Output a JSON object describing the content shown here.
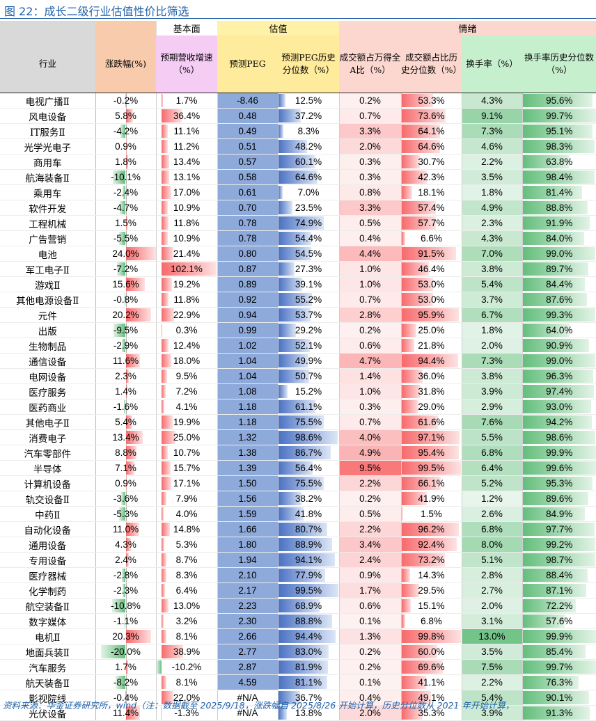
{
  "title": "图 22：成长二级行业估值性价比筛选",
  "groups": {
    "fundamentals": "基本面",
    "valuation": "估值",
    "sentiment": "情绪"
  },
  "headers": {
    "industry": "行业",
    "change": "涨跌幅(%)",
    "growth": "预期营收增速（%）",
    "peg": "预测PEG",
    "peg_pct": "预测PEG历史分位数（%）",
    "amt_share": "成交额占万得全A比（%）",
    "amt_pct": "成交额占比历史分位数（%）",
    "turnover": "换手率（%）",
    "turnover_pct": "换手率历史分位数（%）"
  },
  "colors": {
    "title_blue": "#1f5fa8",
    "neg_green": "#63be7b",
    "pos_red": "#f8696b",
    "val_blue": "#4a72c4",
    "peg_fill": "#8eaadb",
    "amt_red": "#f8696b",
    "turnover_green": "#63be7b"
  },
  "section_break_before": [
    7,
    17,
    35
  ],
  "rows": [
    [
      "电视广播Ⅱ",
      "-0.2%",
      "1.7%",
      "-8.46",
      "12.5%",
      "0.2%",
      "53.3%",
      "4.3%",
      "95.6%"
    ],
    [
      "风电设备",
      "5.8%",
      "36.4%",
      "0.48",
      "37.2%",
      "0.7%",
      "73.6%",
      "9.1%",
      "99.7%"
    ],
    [
      "IT服务Ⅱ",
      "-4.2%",
      "11.1%",
      "0.49",
      "8.3%",
      "3.3%",
      "64.1%",
      "7.3%",
      "95.1%"
    ],
    [
      "光学光电子",
      "0.9%",
      "11.2%",
      "0.51",
      "48.2%",
      "2.0%",
      "64.6%",
      "4.6%",
      "98.3%"
    ],
    [
      "商用车",
      "1.8%",
      "13.4%",
      "0.57",
      "60.1%",
      "0.3%",
      "30.7%",
      "2.2%",
      "63.8%"
    ],
    [
      "航海装备Ⅱ",
      "-10.1%",
      "13.1%",
      "0.58",
      "64.6%",
      "0.3%",
      "42.3%",
      "3.5%",
      "98.4%"
    ],
    [
      "乘用车",
      "-2.4%",
      "17.0%",
      "0.61",
      "7.0%",
      "0.8%",
      "18.1%",
      "1.8%",
      "81.4%"
    ],
    [
      "软件开发",
      "-4.7%",
      "10.9%",
      "0.70",
      "23.5%",
      "3.3%",
      "57.4%",
      "4.9%",
      "88.8%"
    ],
    [
      "工程机械",
      "1.5%",
      "11.8%",
      "0.78",
      "74.9%",
      "0.5%",
      "57.7%",
      "2.3%",
      "91.9%"
    ],
    [
      "广告营销",
      "-5.5%",
      "10.9%",
      "0.78",
      "54.4%",
      "0.4%",
      "6.6%",
      "4.3%",
      "84.0%"
    ],
    [
      "电池",
      "24.0%",
      "21.4%",
      "0.80",
      "54.5%",
      "4.4%",
      "91.5%",
      "7.0%",
      "99.0%"
    ],
    [
      "军工电子Ⅱ",
      "-7.2%",
      "102.1%",
      "0.87",
      "27.3%",
      "1.0%",
      "46.4%",
      "3.8%",
      "89.7%"
    ],
    [
      "游戏Ⅱ",
      "15.6%",
      "19.2%",
      "0.89",
      "39.1%",
      "1.0%",
      "53.0%",
      "5.4%",
      "84.4%"
    ],
    [
      "其他电源设备Ⅱ",
      "-0.8%",
      "11.8%",
      "0.92",
      "55.2%",
      "0.7%",
      "53.0%",
      "3.7%",
      "87.6%"
    ],
    [
      "元件",
      "20.2%",
      "22.9%",
      "0.94",
      "53.7%",
      "2.8%",
      "95.9%",
      "6.7%",
      "99.3%"
    ],
    [
      "出版",
      "-9.5%",
      "0.3%",
      "0.99",
      "29.2%",
      "0.2%",
      "25.0%",
      "1.8%",
      "64.0%"
    ],
    [
      "生物制品",
      "-2.9%",
      "12.4%",
      "1.02",
      "52.1%",
      "0.6%",
      "21.8%",
      "2.0%",
      "90.9%"
    ],
    [
      "通信设备",
      "11.6%",
      "18.0%",
      "1.04",
      "49.9%",
      "4.7%",
      "94.4%",
      "7.3%",
      "99.0%"
    ],
    [
      "电网设备",
      "2.3%",
      "9.5%",
      "1.04",
      "50.7%",
      "1.4%",
      "36.0%",
      "3.8%",
      "96.3%"
    ],
    [
      "医疗服务",
      "1.4%",
      "7.2%",
      "1.08",
      "15.2%",
      "1.0%",
      "31.8%",
      "3.9%",
      "97.4%"
    ],
    [
      "医药商业",
      "-1.6%",
      "4.1%",
      "1.18",
      "61.1%",
      "0.3%",
      "29.0%",
      "2.9%",
      "93.0%"
    ],
    [
      "其他电子Ⅱ",
      "5.4%",
      "19.9%",
      "1.18",
      "75.5%",
      "0.7%",
      "61.6%",
      "7.6%",
      "94.2%"
    ],
    [
      "消费电子",
      "13.4%",
      "25.0%",
      "1.32",
      "98.6%",
      "4.0%",
      "97.1%",
      "5.5%",
      "98.6%"
    ],
    [
      "汽车零部件",
      "8.8%",
      "10.7%",
      "1.38",
      "86.7%",
      "4.9%",
      "95.4%",
      "6.8%",
      "99.9%"
    ],
    [
      "半导体",
      "7.1%",
      "15.7%",
      "1.39",
      "56.4%",
      "9.5%",
      "99.5%",
      "6.4%",
      "99.6%"
    ],
    [
      "计算机设备",
      "0.9%",
      "17.1%",
      "1.50",
      "75.5%",
      "2.2%",
      "66.1%",
      "5.2%",
      "95.3%"
    ],
    [
      "轨交设备Ⅱ",
      "-3.6%",
      "7.9%",
      "1.56",
      "38.2%",
      "0.2%",
      "41.9%",
      "1.2%",
      "89.6%"
    ],
    [
      "中药Ⅱ",
      "-5.3%",
      "4.0%",
      "1.59",
      "41.8%",
      "0.5%",
      "1.5%",
      "2.6%",
      "84.9%"
    ],
    [
      "自动化设备",
      "11.0%",
      "14.8%",
      "1.66",
      "80.7%",
      "2.2%",
      "96.2%",
      "6.8%",
      "97.7%"
    ],
    [
      "通用设备",
      "4.3%",
      "5.3%",
      "1.80",
      "88.9%",
      "3.4%",
      "92.4%",
      "8.0%",
      "99.2%"
    ],
    [
      "专用设备",
      "2.4%",
      "8.7%",
      "1.94",
      "94.1%",
      "2.4%",
      "73.2%",
      "5.1%",
      "98.7%"
    ],
    [
      "医疗器械",
      "-2.8%",
      "8.3%",
      "2.10",
      "77.9%",
      "0.9%",
      "14.3%",
      "2.8%",
      "88.4%"
    ],
    [
      "化学制药",
      "-2.3%",
      "6.4%",
      "2.17",
      "99.5%",
      "1.7%",
      "29.5%",
      "2.7%",
      "87.1%"
    ],
    [
      "航空装备Ⅱ",
      "-10.8%",
      "13.0%",
      "2.23",
      "68.9%",
      "0.6%",
      "15.1%",
      "2.0%",
      "72.2%"
    ],
    [
      "数字媒体",
      "-1.1%",
      "3.2%",
      "2.30",
      "88.8%",
      "0.1%",
      "6.8%",
      "3.1%",
      "57.6%"
    ],
    [
      "电机Ⅱ",
      "20.3%",
      "8.1%",
      "2.66",
      "94.4%",
      "1.3%",
      "99.8%",
      "13.0%",
      "99.9%"
    ],
    [
      "地面兵装Ⅱ",
      "-20.0%",
      "38.9%",
      "2.77",
      "83.0%",
      "0.2%",
      "60.0%",
      "3.5%",
      "85.4%"
    ],
    [
      "汽车服务",
      "1.7%",
      "-10.2%",
      "2.87",
      "81.9%",
      "0.2%",
      "69.6%",
      "7.5%",
      "99.7%"
    ],
    [
      "航天装备Ⅱ",
      "-8.2%",
      "8.1%",
      "4.59",
      "81.1%",
      "0.1%",
      "41.1%",
      "2.2%",
      "76.3%"
    ],
    [
      "影视院线",
      "-0.4%",
      "22.0%",
      "#N/A",
      "36.7%",
      "0.4%",
      "49.1%",
      "5.4%",
      "90.1%"
    ],
    [
      "光伏设备",
      "11.4%",
      "-1.3%",
      "#N/A",
      "13.8%",
      "2.0%",
      "35.3%",
      "3.9%",
      "91.3%"
    ]
  ],
  "footer": "资料来源：华金证券研究所，wind（注：数据截至 2025/9/18，涨跌幅自 2025/8/26 开始计算，历史分位数从 2021 年开始计算，"
}
